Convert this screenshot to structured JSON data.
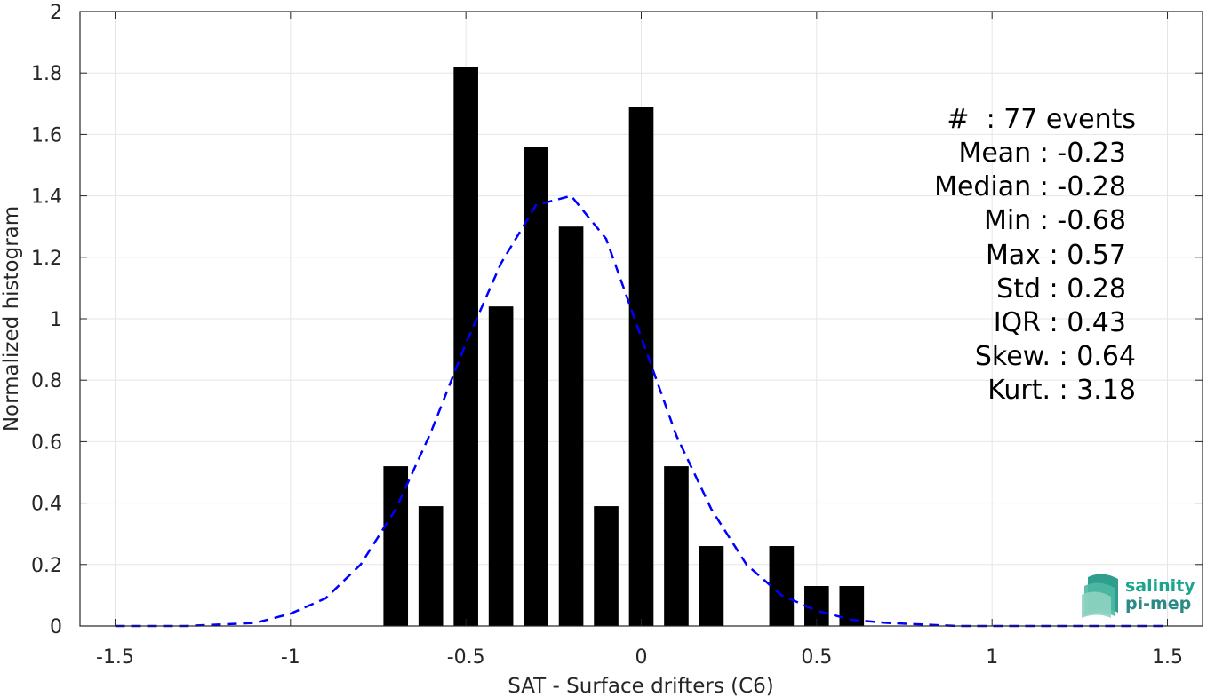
{
  "chart_data": {
    "type": "bar",
    "xlabel": "SAT - Surface drifters (C6)",
    "ylabel": "Normalized histogram",
    "xlim": [
      -1.6,
      1.6
    ],
    "ylim": [
      0,
      2
    ],
    "xticks": [
      -1.5,
      -1,
      -0.5,
      0,
      0.5,
      1,
      1.5
    ],
    "xtick_labels": [
      "-1.5",
      "-1",
      "-0.5",
      "0",
      "0.5",
      "1",
      "1.5"
    ],
    "yticks": [
      0,
      0.2,
      0.4,
      0.6,
      0.8,
      1,
      1.2,
      1.4,
      1.6,
      1.8,
      2
    ],
    "ytick_labels": [
      "0",
      "0.2",
      "0.4",
      "0.6",
      "0.8",
      "1",
      "1.2",
      "1.4",
      "1.6",
      "1.8",
      "2"
    ],
    "grid": true,
    "bar_color": "#000000",
    "bar_width": 0.07,
    "bars": {
      "x": [
        -0.7,
        -0.6,
        -0.5,
        -0.4,
        -0.3,
        -0.2,
        -0.1,
        0.0,
        0.1,
        0.2,
        0.4,
        0.5,
        0.6
      ],
      "values": [
        0.52,
        0.39,
        1.82,
        1.04,
        1.56,
        1.3,
        0.39,
        1.69,
        0.52,
        0.26,
        0.26,
        0.13,
        0.13
      ]
    },
    "fit_curve": {
      "style": "dashed",
      "color": "#0000ff",
      "x": [
        -1.5,
        -1.4,
        -1.3,
        -1.2,
        -1.1,
        -1.0,
        -0.9,
        -0.8,
        -0.7,
        -0.6,
        -0.5,
        -0.4,
        -0.3,
        -0.2,
        -0.1,
        0.0,
        0.1,
        0.2,
        0.3,
        0.4,
        0.5,
        0.6,
        0.7,
        0.8,
        0.9,
        1.0,
        1.1,
        1.2,
        1.3,
        1.4,
        1.5
      ],
      "y": [
        0.0,
        0.0,
        0.0,
        0.005,
        0.01,
        0.04,
        0.09,
        0.2,
        0.38,
        0.63,
        0.92,
        1.18,
        1.37,
        1.4,
        1.26,
        0.94,
        0.62,
        0.38,
        0.2,
        0.1,
        0.05,
        0.02,
        0.01,
        0.005,
        0.0,
        0.0,
        0.0,
        0.0,
        0.0,
        0.0,
        0.0
      ]
    },
    "annotations": [
      "#  : 77 events",
      "Mean : -0.23",
      "Median : -0.28",
      "Min : -0.68",
      "Max : 0.57",
      "Std : 0.28",
      "IQR : 0.43",
      "Skew. : 0.64",
      "Kurt. : 3.18"
    ]
  },
  "logo": {
    "line1": "salinity",
    "line2": "pi-mep",
    "color1": "#1aa58c",
    "color2": "#2b8a86"
  }
}
